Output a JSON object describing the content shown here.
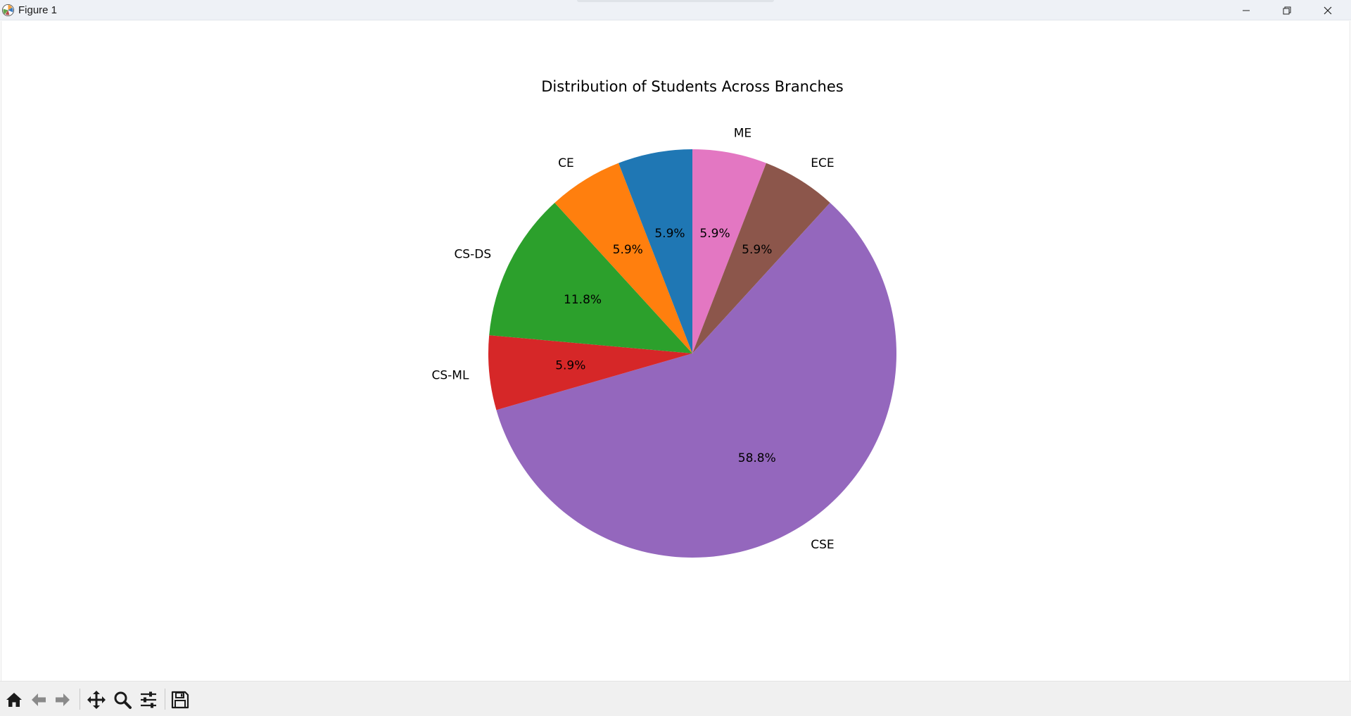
{
  "window": {
    "title": "Figure 1"
  },
  "toolbar": {
    "buttons": [
      "home-icon",
      "back-icon",
      "forward-icon",
      "pan-icon",
      "zoom-icon",
      "configure-subplots-icon",
      "save-icon"
    ]
  },
  "chart_data": {
    "type": "pie",
    "title": "Distribution of Students Across Branches",
    "labels": [
      "ME",
      "ECE",
      "CSE",
      "CS-ML",
      "CS-DS",
      "CE",
      ""
    ],
    "values": [
      5.9,
      5.9,
      58.8,
      5.9,
      11.8,
      5.9,
      5.9
    ],
    "value_labels": [
      "5.9%",
      "5.9%",
      "58.8%",
      "5.9%",
      "11.8%",
      "5.9%",
      "5.9%"
    ],
    "colors": [
      "#e377c2",
      "#8c564b",
      "#9467bd",
      "#d62728",
      "#2ca02c",
      "#ff7f0e",
      "#1f77b4"
    ],
    "start": "12 o'clock",
    "direction": "clockwise"
  }
}
